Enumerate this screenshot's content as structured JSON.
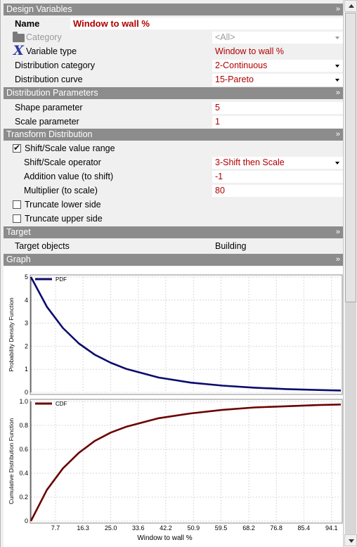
{
  "sections": {
    "design_variables": "Design Variables",
    "distribution_parameters": "Distribution Parameters",
    "transform_distribution": "Transform Distribution",
    "target": "Target",
    "graph": "Graph",
    "chevron": "»"
  },
  "design": {
    "name_label": "Name",
    "name_value": "Window to wall %",
    "category_label": "Category",
    "category_value": "<All>",
    "variable_type_label": "Variable type",
    "variable_type_value": "Window to wall %",
    "dist_category_label": "Distribution category",
    "dist_category_value": "2-Continuous",
    "dist_curve_label": "Distribution curve",
    "dist_curve_value": "15-Pareto"
  },
  "params": {
    "shape_label": "Shape parameter",
    "shape_value": "5",
    "scale_label": "Scale parameter",
    "scale_value": "1"
  },
  "transform": {
    "shift_scale_label": "Shift/Scale value range",
    "shift_scale_checked": true,
    "operator_label": "Shift/Scale operator",
    "operator_value": "3-Shift then Scale",
    "addition_label": "Addition value (to shift)",
    "addition_value": "-1",
    "multiplier_label": "Multiplier (to scale)",
    "multiplier_value": "80",
    "truncate_lower_label": "Truncate lower side",
    "truncate_upper_label": "Truncate upper side"
  },
  "target": {
    "objects_label": "Target objects",
    "objects_value": "Building"
  },
  "colors": {
    "pdf_line": "#0b0b6e",
    "cdf_line": "#6b0000",
    "header_bg": "#8c8c8c",
    "value_text": "#b00000"
  },
  "chart_data": [
    {
      "type": "line",
      "series": [
        {
          "name": "PDF",
          "distribution": "pareto",
          "shape": 5,
          "scale": 1,
          "shift": -1,
          "multiplier": 80
        }
      ],
      "xlabel": "",
      "ylabel": "Probability Density Function",
      "xlim": [
        0,
        97
      ],
      "ylim": [
        0,
        5
      ],
      "yticks": [
        0,
        1,
        2,
        3,
        4,
        5
      ],
      "x": [
        0,
        5,
        10,
        15,
        20,
        25,
        30,
        40,
        50,
        60,
        70,
        80,
        90,
        97
      ],
      "y": [
        5.0,
        3.71,
        2.79,
        2.12,
        1.63,
        1.28,
        1.01,
        0.64,
        0.42,
        0.29,
        0.2,
        0.14,
        0.1,
        0.08
      ],
      "grid": true,
      "legend": "top-left"
    },
    {
      "type": "line",
      "series": [
        {
          "name": "CDF"
        }
      ],
      "xlabel": "Window to wall %",
      "ylabel": "Cumulative Distribution Function",
      "xlim": [
        0,
        97
      ],
      "ylim": [
        0,
        1
      ],
      "yticks": [
        "0",
        "0.2",
        "0.4",
        "0.6",
        "0.8",
        "1.0"
      ],
      "xticks": [
        "7.7",
        "16.3",
        "25.0",
        "33.6",
        "42.2",
        "50.9",
        "59.5",
        "68.2",
        "76.8",
        "85.4",
        "94.1"
      ],
      "x": [
        0,
        5,
        10,
        15,
        20,
        25,
        30,
        40,
        50,
        60,
        70,
        80,
        90,
        97
      ],
      "y": [
        0,
        0.26,
        0.44,
        0.57,
        0.67,
        0.74,
        0.79,
        0.86,
        0.9,
        0.93,
        0.95,
        0.96,
        0.97,
        0.975
      ],
      "grid": true,
      "legend": "top-left"
    }
  ]
}
